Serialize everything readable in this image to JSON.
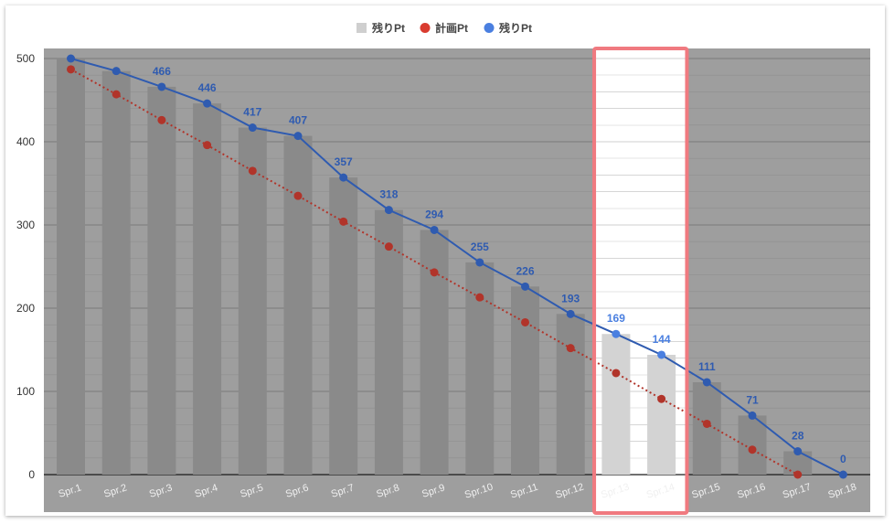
{
  "legend": [
    {
      "label": "残りPt",
      "kind": "square",
      "color": "#cfcfcf"
    },
    {
      "label": "計画Pt",
      "kind": "dot",
      "color": "#d93b2f"
    },
    {
      "label": "残りPt",
      "kind": "dot",
      "color": "#4a7fe0"
    }
  ],
  "chart_data": {
    "type": "bar",
    "categories": [
      "Spr.1",
      "Spr.2",
      "Spr.3",
      "Spr.4",
      "Spr.5",
      "Spr.6",
      "Spr.7",
      "Spr.8",
      "Spr.9",
      "Spr.10",
      "Spr.11",
      "Spr.12",
      "Spr.13",
      "Spr.14",
      "Spr.15",
      "Spr.16",
      "Spr.17",
      "Spr.18"
    ],
    "series": [
      {
        "name": "残りPt",
        "kind": "bar",
        "color": "#8a8a8a",
        "highlight_color": "#d3d3d3",
        "values": [
          500,
          485,
          466,
          446,
          417,
          407,
          357,
          318,
          294,
          255,
          226,
          193,
          169,
          144,
          111,
          71,
          28,
          0
        ]
      },
      {
        "name": "計画Pt",
        "kind": "line-dotted",
        "color": "#b1342a",
        "values": [
          487,
          457,
          426,
          396,
          365,
          335,
          304,
          274,
          243,
          213,
          183,
          152,
          122,
          91,
          61,
          30,
          0,
          null
        ]
      },
      {
        "name": "残りPt",
        "kind": "line",
        "color": "#2f5bb0",
        "values": [
          500,
          485,
          466,
          446,
          417,
          407,
          357,
          318,
          294,
          255,
          226,
          193,
          169,
          144,
          111,
          71,
          28,
          0
        ]
      }
    ],
    "data_labels": [
      "",
      "",
      "466",
      "446",
      "417",
      "407",
      "357",
      "318",
      "294",
      "255",
      "226",
      "193",
      "169",
      "144",
      "111",
      "71",
      "28",
      "0"
    ],
    "highlighted_categories": [
      "Spr.13",
      "Spr.14"
    ],
    "highlight_box_color": "#f07a80",
    "y_ticks": [
      0,
      100,
      200,
      300,
      400,
      500
    ],
    "ylim": [
      0,
      500
    ],
    "grid": true,
    "legend_position": "top"
  }
}
